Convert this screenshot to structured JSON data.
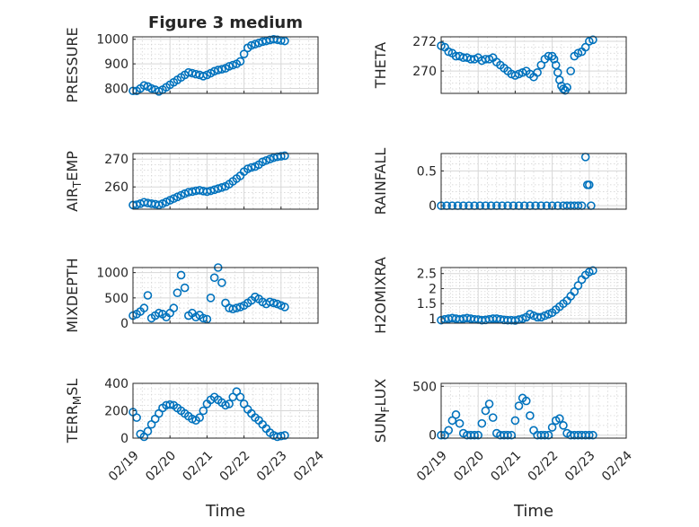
{
  "figure": {
    "title": "Figure 3 medium",
    "xlabel": "Time",
    "xticks": [
      "02/19",
      "02/20",
      "02/21",
      "02/22",
      "02/23",
      "02/24"
    ],
    "marker": "open-circle",
    "series_color": "#0072BD"
  },
  "chart_data": [
    {
      "type": "scatter",
      "name": "pressure",
      "ylabel_parts": [
        [
          "PRESSURE",
          ""
        ]
      ],
      "xlim": [
        0,
        5
      ],
      "ylim": [
        780,
        1010
      ],
      "yticks": [
        800,
        900,
        1000
      ],
      "x": [
        0,
        0.1,
        0.2,
        0.3,
        0.4,
        0.5,
        0.6,
        0.7,
        0.8,
        0.9,
        1,
        1.1,
        1.2,
        1.3,
        1.4,
        1.5,
        1.6,
        1.7,
        1.8,
        1.9,
        2,
        2.1,
        2.2,
        2.3,
        2.4,
        2.5,
        2.6,
        2.7,
        2.8,
        2.9,
        3,
        3.1,
        3.2,
        3.3,
        3.4,
        3.5,
        3.6,
        3.7,
        3.8,
        3.9,
        4,
        4.1
      ],
      "y": [
        790,
        790,
        800,
        812,
        808,
        800,
        795,
        788,
        795,
        805,
        815,
        825,
        835,
        845,
        855,
        865,
        862,
        858,
        855,
        850,
        855,
        862,
        870,
        875,
        878,
        882,
        890,
        895,
        900,
        910,
        940,
        965,
        975,
        980,
        985,
        990,
        993,
        997,
        1000,
        998,
        995,
        993
      ]
    },
    {
      "type": "scatter",
      "name": "theta",
      "ylabel_parts": [
        [
          "THETA",
          ""
        ]
      ],
      "xlim": [
        0,
        5
      ],
      "ylim": [
        268.5,
        272.3
      ],
      "yticks": [
        270,
        272
      ],
      "x": [
        0,
        0.1,
        0.2,
        0.3,
        0.4,
        0.5,
        0.6,
        0.7,
        0.8,
        0.9,
        1,
        1.1,
        1.2,
        1.3,
        1.4,
        1.5,
        1.6,
        1.7,
        1.8,
        1.9,
        2,
        2.1,
        2.2,
        2.3,
        2.4,
        2.5,
        2.6,
        2.7,
        2.8,
        2.9,
        3,
        3.05,
        3.1,
        3.15,
        3.2,
        3.25,
        3.3,
        3.35,
        3.4,
        3.5,
        3.6,
        3.7,
        3.8,
        3.9,
        4,
        4.1
      ],
      "y": [
        271.7,
        271.6,
        271.3,
        271.2,
        271.0,
        271.0,
        270.9,
        270.9,
        270.8,
        270.8,
        270.9,
        270.7,
        270.8,
        270.8,
        270.9,
        270.6,
        270.4,
        270.2,
        270.0,
        269.8,
        269.7,
        269.8,
        269.9,
        270.0,
        269.8,
        269.6,
        269.9,
        270.4,
        270.8,
        271.0,
        271.0,
        270.8,
        270.4,
        269.9,
        269.4,
        269.0,
        268.8,
        268.7,
        268.9,
        270.0,
        271.0,
        271.2,
        271.3,
        271.6,
        272.0,
        272.1
      ]
    },
    {
      "type": "scatter",
      "name": "air-temp",
      "ylabel_parts": [
        [
          "AIR",
          ""
        ],
        [
          "T",
          "sub"
        ],
        [
          "EMP",
          ""
        ]
      ],
      "xlim": [
        0,
        5
      ],
      "ylim": [
        252,
        272
      ],
      "yticks": [
        260,
        270
      ],
      "x": [
        0,
        0.1,
        0.2,
        0.3,
        0.4,
        0.5,
        0.6,
        0.7,
        0.8,
        0.9,
        1,
        1.1,
        1.2,
        1.3,
        1.4,
        1.5,
        1.6,
        1.7,
        1.8,
        1.9,
        2,
        2.1,
        2.2,
        2.3,
        2.4,
        2.5,
        2.6,
        2.7,
        2.8,
        2.9,
        3,
        3.1,
        3.2,
        3.3,
        3.4,
        3.5,
        3.6,
        3.7,
        3.8,
        3.9,
        4,
        4.1
      ],
      "y": [
        253.5,
        253.6,
        254.0,
        254.5,
        254.2,
        254.0,
        253.8,
        253.5,
        254.0,
        254.6,
        255.2,
        255.8,
        256.4,
        257.0,
        257.6,
        258.1,
        258.3,
        258.6,
        258.8,
        258.5,
        258.3,
        258.6,
        259.0,
        259.4,
        259.8,
        260.2,
        261.0,
        262.0,
        263.0,
        264.0,
        265.5,
        266.5,
        267.0,
        267.3,
        268.0,
        269.0,
        269.5,
        270.0,
        270.5,
        270.8,
        271.0,
        271.2
      ]
    },
    {
      "type": "scatter",
      "name": "rainfall",
      "ylabel_parts": [
        [
          "RAINFALL",
          ""
        ]
      ],
      "xlim": [
        0,
        5
      ],
      "ylim": [
        -0.05,
        0.75
      ],
      "yticks": [
        0,
        0.5
      ],
      "x": [
        0,
        0.15,
        0.3,
        0.45,
        0.6,
        0.75,
        0.9,
        1.05,
        1.2,
        1.35,
        1.5,
        1.65,
        1.8,
        1.95,
        2.1,
        2.25,
        2.4,
        2.55,
        2.7,
        2.85,
        3,
        3.15,
        3.3,
        3.4,
        3.5,
        3.6,
        3.7,
        3.8,
        3.9,
        3.95,
        4,
        4.05
      ],
      "y": [
        0,
        0,
        0,
        0,
        0,
        0,
        0,
        0,
        0,
        0,
        0,
        0,
        0,
        0,
        0,
        0,
        0,
        0,
        0,
        0,
        0,
        0,
        0,
        0,
        0,
        0,
        0,
        0,
        0.7,
        0.3,
        0.3,
        0
      ]
    },
    {
      "type": "scatter",
      "name": "mixdepth",
      "ylabel_parts": [
        [
          "MIXDEPTH",
          ""
        ]
      ],
      "xlim": [
        0,
        5
      ],
      "ylim": [
        0,
        1100
      ],
      "yticks": [
        0,
        500,
        1000
      ],
      "x": [
        0,
        0.1,
        0.2,
        0.3,
        0.4,
        0.5,
        0.6,
        0.7,
        0.8,
        0.9,
        1,
        1.1,
        1.2,
        1.3,
        1.4,
        1.5,
        1.6,
        1.7,
        1.8,
        1.9,
        2,
        2.1,
        2.2,
        2.3,
        2.4,
        2.5,
        2.6,
        2.7,
        2.8,
        2.9,
        3,
        3.1,
        3.2,
        3.3,
        3.4,
        3.5,
        3.6,
        3.7,
        3.8,
        3.9,
        4,
        4.1
      ],
      "y": [
        150,
        180,
        230,
        300,
        550,
        100,
        150,
        200,
        180,
        120,
        200,
        300,
        600,
        950,
        700,
        150,
        200,
        120,
        160,
        100,
        80,
        500,
        900,
        1100,
        800,
        400,
        300,
        280,
        300,
        320,
        350,
        400,
        450,
        520,
        480,
        420,
        380,
        420,
        400,
        380,
        350,
        320
      ]
    },
    {
      "type": "scatter",
      "name": "h2omixra",
      "ylabel_parts": [
        [
          "H2OMIXRA",
          ""
        ]
      ],
      "xlim": [
        0,
        5
      ],
      "ylim": [
        0.85,
        2.7
      ],
      "yticks": [
        1,
        1.5,
        2,
        2.5
      ],
      "x": [
        0,
        0.1,
        0.2,
        0.3,
        0.4,
        0.5,
        0.6,
        0.7,
        0.8,
        0.9,
        1,
        1.1,
        1.2,
        1.3,
        1.4,
        1.5,
        1.6,
        1.7,
        1.8,
        1.9,
        2,
        2.1,
        2.2,
        2.3,
        2.4,
        2.5,
        2.6,
        2.7,
        2.8,
        2.9,
        3,
        3.1,
        3.2,
        3.3,
        3.4,
        3.5,
        3.6,
        3.7,
        3.8,
        3.9,
        4,
        4.1
      ],
      "y": [
        0.95,
        0.98,
        1.0,
        1.02,
        1.0,
        0.98,
        1.0,
        1.02,
        1.0,
        0.98,
        0.97,
        0.95,
        0.96,
        0.98,
        1.0,
        1.0,
        0.98,
        0.96,
        0.95,
        0.95,
        0.94,
        0.97,
        1.0,
        1.05,
        1.15,
        1.1,
        1.05,
        1.05,
        1.1,
        1.15,
        1.2,
        1.3,
        1.4,
        1.5,
        1.6,
        1.75,
        1.9,
        2.1,
        2.3,
        2.45,
        2.55,
        2.6
      ]
    },
    {
      "type": "scatter",
      "name": "terr-msl",
      "ylabel_parts": [
        [
          "TERR",
          ""
        ],
        [
          "M",
          "sub"
        ],
        [
          "SL",
          ""
        ]
      ],
      "xlim": [
        0,
        5
      ],
      "ylim": [
        0,
        400
      ],
      "yticks": [
        0,
        200,
        400
      ],
      "x": [
        0,
        0.1,
        0.2,
        0.3,
        0.4,
        0.5,
        0.6,
        0.7,
        0.8,
        0.9,
        1,
        1.1,
        1.2,
        1.3,
        1.4,
        1.5,
        1.6,
        1.7,
        1.8,
        1.9,
        2,
        2.1,
        2.2,
        2.3,
        2.4,
        2.5,
        2.6,
        2.7,
        2.8,
        2.9,
        3,
        3.1,
        3.2,
        3.3,
        3.4,
        3.5,
        3.6,
        3.7,
        3.8,
        3.9,
        4,
        4.1
      ],
      "y": [
        190,
        150,
        30,
        10,
        50,
        100,
        140,
        180,
        220,
        240,
        245,
        240,
        220,
        200,
        180,
        160,
        140,
        130,
        150,
        200,
        250,
        280,
        300,
        280,
        260,
        240,
        250,
        300,
        340,
        300,
        250,
        210,
        180,
        150,
        130,
        100,
        70,
        40,
        20,
        10,
        15,
        20
      ]
    },
    {
      "type": "scatter",
      "name": "sun-flux",
      "ylabel_parts": [
        [
          "SUN",
          ""
        ],
        [
          "F",
          "sub"
        ],
        [
          "LUX",
          ""
        ]
      ],
      "xlim": [
        0,
        5
      ],
      "ylim": [
        -30,
        530
      ],
      "yticks": [
        0,
        500
      ],
      "x": [
        0,
        0.1,
        0.2,
        0.3,
        0.4,
        0.5,
        0.6,
        0.7,
        0.8,
        0.9,
        1,
        1.1,
        1.2,
        1.3,
        1.4,
        1.5,
        1.6,
        1.7,
        1.8,
        1.9,
        2,
        2.1,
        2.2,
        2.3,
        2.4,
        2.5,
        2.6,
        2.7,
        2.8,
        2.9,
        3,
        3.1,
        3.2,
        3.3,
        3.4,
        3.5,
        3.6,
        3.7,
        3.8,
        3.9,
        4,
        4.1
      ],
      "y": [
        0,
        0,
        50,
        150,
        210,
        120,
        20,
        0,
        0,
        0,
        0,
        120,
        250,
        320,
        180,
        20,
        0,
        0,
        0,
        0,
        150,
        300,
        380,
        350,
        200,
        50,
        0,
        0,
        0,
        0,
        80,
        150,
        170,
        100,
        20,
        0,
        0,
        0,
        0,
        0,
        0,
        0
      ]
    }
  ]
}
